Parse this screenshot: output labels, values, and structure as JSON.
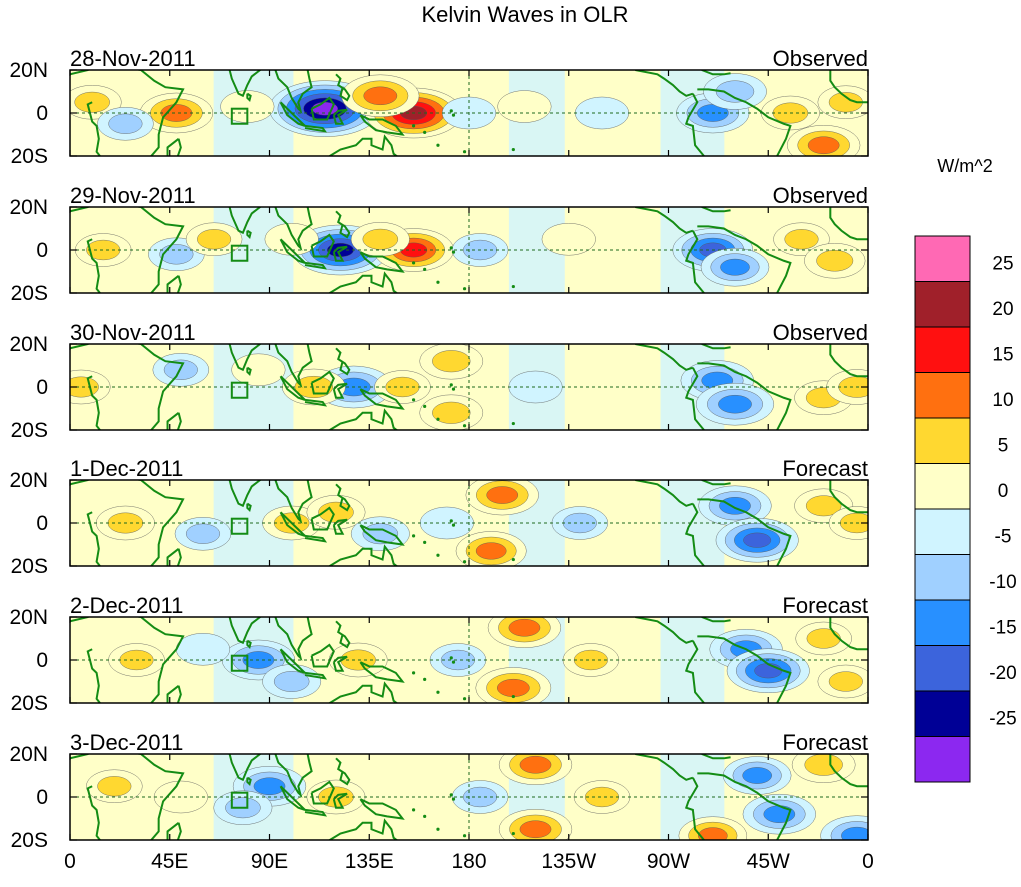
{
  "chart_data": {
    "type": "heatmap",
    "title": "Kelvin Waves in OLR",
    "units_label": "W/m^2",
    "x_ticks": [
      "0",
      "45E",
      "90E",
      "135E",
      "180",
      "135W",
      "90W",
      "45W",
      "0"
    ],
    "x_tick_values": [
      0,
      45,
      90,
      135,
      180,
      225,
      270,
      315,
      360
    ],
    "xlim": [
      0,
      360
    ],
    "y_ticks": [
      "20N",
      "0",
      "20S"
    ],
    "y_tick_values": [
      20,
      0,
      -20
    ],
    "ylim": [
      -20,
      20
    ],
    "colorbar_labels": [
      "25",
      "20",
      "15",
      "10",
      "5",
      "0",
      "-5",
      "-10",
      "-15",
      "-20",
      "-25"
    ],
    "levels": [
      {
        "lo": 25,
        "hi": 30,
        "color": "#ff69b4"
      },
      {
        "lo": 20,
        "hi": 25,
        "color": "#a0202a"
      },
      {
        "lo": 15,
        "hi": 20,
        "color": "#ff1010"
      },
      {
        "lo": 10,
        "hi": 15,
        "color": "#ff7010"
      },
      {
        "lo": 5,
        "hi": 10,
        "color": "#ffd830"
      },
      {
        "lo": 0,
        "hi": 5,
        "color": "#ffffc8"
      },
      {
        "lo": -5,
        "hi": 0,
        "color": "#d0f4ff"
      },
      {
        "lo": -10,
        "hi": -5,
        "color": "#a0d0ff"
      },
      {
        "lo": -15,
        "hi": -10,
        "color": "#2890ff"
      },
      {
        "lo": -20,
        "hi": -15,
        "color": "#3c64dc"
      },
      {
        "lo": -25,
        "hi": -20,
        "color": "#000096"
      },
      {
        "lo": -30,
        "hi": -25,
        "color": "#8c28f0"
      }
    ],
    "land_color": "#148c14",
    "panels": [
      {
        "date": "28-Nov-2011",
        "label": "Observed",
        "features": [
          {
            "lon": 115,
            "lat": 2,
            "value": -28
          },
          {
            "lon": 155,
            "lat": 0,
            "value": 22
          },
          {
            "lon": 140,
            "lat": 8,
            "value": 14
          },
          {
            "lon": 48,
            "lat": 0,
            "value": 12
          },
          {
            "lon": 10,
            "lat": 5,
            "value": 6
          },
          {
            "lon": 25,
            "lat": -5,
            "value": -5
          },
          {
            "lon": 80,
            "lat": 3,
            "value": 4
          },
          {
            "lon": 180,
            "lat": 0,
            "value": -4
          },
          {
            "lon": 205,
            "lat": 3,
            "value": 4
          },
          {
            "lon": 240,
            "lat": 0,
            "value": -4
          },
          {
            "lon": 290,
            "lat": 0,
            "value": -12
          },
          {
            "lon": 300,
            "lat": 10,
            "value": -8
          },
          {
            "lon": 325,
            "lat": 0,
            "value": 6
          },
          {
            "lon": 340,
            "lat": -15,
            "value": 12
          },
          {
            "lon": 350,
            "lat": 5,
            "value": 5
          }
        ]
      },
      {
        "date": "29-Nov-2011",
        "label": "Observed",
        "features": [
          {
            "lon": 122,
            "lat": 0,
            "value": -22
          },
          {
            "lon": 155,
            "lat": 0,
            "value": 15
          },
          {
            "lon": 140,
            "lat": 5,
            "value": 6
          },
          {
            "lon": 48,
            "lat": -2,
            "value": -5
          },
          {
            "lon": 65,
            "lat": 5,
            "value": 5
          },
          {
            "lon": 15,
            "lat": 0,
            "value": 5
          },
          {
            "lon": 100,
            "lat": 5,
            "value": 4
          },
          {
            "lon": 185,
            "lat": 0,
            "value": -5
          },
          {
            "lon": 225,
            "lat": 5,
            "value": 4
          },
          {
            "lon": 290,
            "lat": 0,
            "value": -15
          },
          {
            "lon": 300,
            "lat": -8,
            "value": -10
          },
          {
            "lon": 330,
            "lat": 5,
            "value": 5
          },
          {
            "lon": 345,
            "lat": -5,
            "value": 7
          }
        ]
      },
      {
        "date": "30-Nov-2011",
        "label": "Observed",
        "features": [
          {
            "lon": 128,
            "lat": 0,
            "value": -14
          },
          {
            "lon": 110,
            "lat": 0,
            "value": 8
          },
          {
            "lon": 150,
            "lat": 0,
            "value": 5
          },
          {
            "lon": 172,
            "lat": 12,
            "value": 8
          },
          {
            "lon": 172,
            "lat": -12,
            "value": 8
          },
          {
            "lon": 5,
            "lat": 0,
            "value": 6
          },
          {
            "lon": 50,
            "lat": 8,
            "value": -5
          },
          {
            "lon": 85,
            "lat": 8,
            "value": 4
          },
          {
            "lon": 210,
            "lat": 0,
            "value": -4
          },
          {
            "lon": 292,
            "lat": 3,
            "value": -12
          },
          {
            "lon": 300,
            "lat": -8,
            "value": -14
          },
          {
            "lon": 340,
            "lat": -5,
            "value": 6
          },
          {
            "lon": 355,
            "lat": 0,
            "value": 7
          }
        ]
      },
      {
        "date": "1-Dec-2011",
        "label": "Forecast",
        "features": [
          {
            "lon": 100,
            "lat": 0,
            "value": 6
          },
          {
            "lon": 120,
            "lat": 5,
            "value": 6
          },
          {
            "lon": 140,
            "lat": -5,
            "value": -6
          },
          {
            "lon": 195,
            "lat": 13,
            "value": 12
          },
          {
            "lon": 190,
            "lat": -13,
            "value": 11
          },
          {
            "lon": 25,
            "lat": 0,
            "value": 6
          },
          {
            "lon": 60,
            "lat": -5,
            "value": -5
          },
          {
            "lon": 170,
            "lat": 0,
            "value": -4
          },
          {
            "lon": 230,
            "lat": 0,
            "value": -5
          },
          {
            "lon": 300,
            "lat": 8,
            "value": -12
          },
          {
            "lon": 310,
            "lat": -8,
            "value": -16
          },
          {
            "lon": 340,
            "lat": 8,
            "value": 6
          },
          {
            "lon": 355,
            "lat": 0,
            "value": 5
          }
        ]
      },
      {
        "date": "2-Dec-2011",
        "label": "Forecast",
        "features": [
          {
            "lon": 85,
            "lat": 0,
            "value": -12
          },
          {
            "lon": 130,
            "lat": 0,
            "value": 6
          },
          {
            "lon": 100,
            "lat": -10,
            "value": -6
          },
          {
            "lon": 205,
            "lat": 15,
            "value": 12
          },
          {
            "lon": 200,
            "lat": -13,
            "value": 13
          },
          {
            "lon": 175,
            "lat": 0,
            "value": -5
          },
          {
            "lon": 235,
            "lat": 0,
            "value": 5
          },
          {
            "lon": 30,
            "lat": 0,
            "value": 5
          },
          {
            "lon": 60,
            "lat": 5,
            "value": -4
          },
          {
            "lon": 305,
            "lat": 5,
            "value": -12
          },
          {
            "lon": 315,
            "lat": -5,
            "value": -16
          },
          {
            "lon": 340,
            "lat": 10,
            "value": 5
          },
          {
            "lon": 350,
            "lat": -10,
            "value": 5
          }
        ]
      },
      {
        "date": "3-Dec-2011",
        "label": "Forecast",
        "features": [
          {
            "lon": 90,
            "lat": 5,
            "value": -12
          },
          {
            "lon": 120,
            "lat": 0,
            "value": 6
          },
          {
            "lon": 78,
            "lat": -5,
            "value": -6
          },
          {
            "lon": 210,
            "lat": 15,
            "value": 12
          },
          {
            "lon": 210,
            "lat": -15,
            "value": 12
          },
          {
            "lon": 185,
            "lat": 0,
            "value": -5
          },
          {
            "lon": 240,
            "lat": 0,
            "value": 5
          },
          {
            "lon": 20,
            "lat": 5,
            "value": 5
          },
          {
            "lon": 50,
            "lat": 0,
            "value": 4
          },
          {
            "lon": 310,
            "lat": 10,
            "value": -10
          },
          {
            "lon": 320,
            "lat": -8,
            "value": -12
          },
          {
            "lon": 290,
            "lat": -18,
            "value": 10
          },
          {
            "lon": 340,
            "lat": 15,
            "value": 8
          },
          {
            "lon": 355,
            "lat": -18,
            "value": -12
          }
        ]
      }
    ]
  }
}
